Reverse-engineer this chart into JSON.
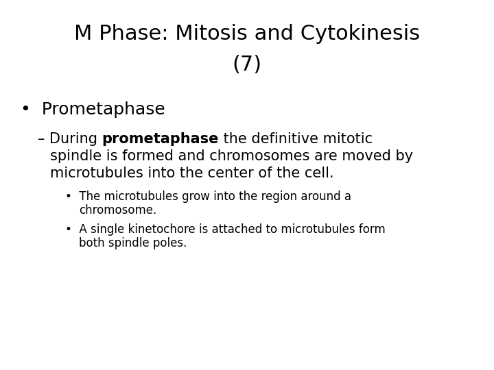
{
  "background_color": "#ffffff",
  "title_line1": "M Phase: Mitosis and Cytokinesis",
  "title_line2": "(7)",
  "title_fontsize": 22,
  "title_font": "DejaVu Sans",
  "bullet1": "Prometaphase",
  "bullet1_fontsize": 18,
  "dash_plain1": "– During ",
  "dash_bold": "prometaphase",
  "dash_plain2": " the definitive mitotic",
  "dash_line2": "spindle is formed and chromosomes are moved by",
  "dash_line3": "microtubules into the center of the cell.",
  "dash_fontsize": 15,
  "sub_bullet1_line1": "The microtubules grow into the region around a",
  "sub_bullet1_line2": "chromosome.",
  "sub_bullet2_line1": "A single kinetochore is attached to microtubules form",
  "sub_bullet2_line2": "both spindle poles.",
  "sub_fontsize": 12,
  "text_color": "#000000"
}
